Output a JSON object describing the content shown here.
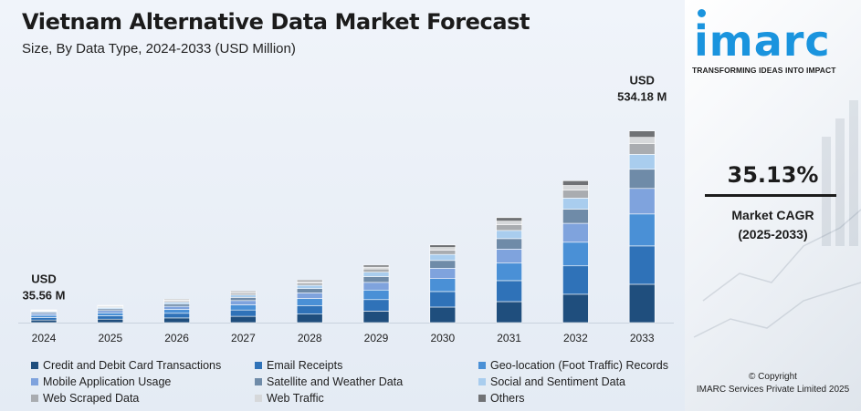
{
  "title": "Vietnam Alternative Data Market Forecast",
  "subtitle": "Size, By Data Type, 2024-2033 (USD Million)",
  "brand": {
    "logo": "imarc",
    "tagline": "TRANSFORMING IDEAS INTO IMPACT",
    "color": "#1a94de"
  },
  "cagr": {
    "value": "35.13%",
    "label": "Market CAGR",
    "period": "(2025-2033)"
  },
  "copyright": {
    "line1": "© Copyright",
    "line2": "IMARC Services Private Limited 2025"
  },
  "chart_data": {
    "type": "bar",
    "stacked": true,
    "categories": [
      "2024",
      "2025",
      "2026",
      "2027",
      "2028",
      "2029",
      "2030",
      "2031",
      "2032",
      "2033"
    ],
    "totals": [
      35.56,
      48.05,
      64.93,
      87.74,
      118.56,
      160.21,
      216.49,
      292.54,
      395.31,
      534.18
    ],
    "annotations": [
      {
        "category": "2024",
        "line1": "USD",
        "line2": "35.56 M"
      },
      {
        "category": "2033",
        "line1": "USD",
        "line2": "534.18 M"
      }
    ],
    "series": [
      {
        "name": "Credit and Debit Card Transactions",
        "color": "#1f4e7d",
        "share": 0.18
      },
      {
        "name": "Email Receipts",
        "color": "#2f72b8",
        "share": 0.18
      },
      {
        "name": "Geo-location (Foot Traffic) Records",
        "color": "#4a90d6",
        "share": 0.15
      },
      {
        "name": "Mobile Application Usage",
        "color": "#7fa3dd",
        "share": 0.12
      },
      {
        "name": "Satellite and Weather Data",
        "color": "#6f8ba8",
        "share": 0.09
      },
      {
        "name": "Social and Sentiment Data",
        "color": "#a9cdee",
        "share": 0.07
      },
      {
        "name": "Web Scraped Data",
        "color": "#a9acb0",
        "share": 0.05
      },
      {
        "name": "Web Traffic",
        "color": "#d6d8da",
        "share": 0.03
      },
      {
        "name": "Others",
        "color": "#707275",
        "share": 0.03
      }
    ],
    "xlabel": "",
    "ylabel": "",
    "ylim": [
      0,
      560
    ],
    "grid": false,
    "legend_position": "bottom"
  }
}
